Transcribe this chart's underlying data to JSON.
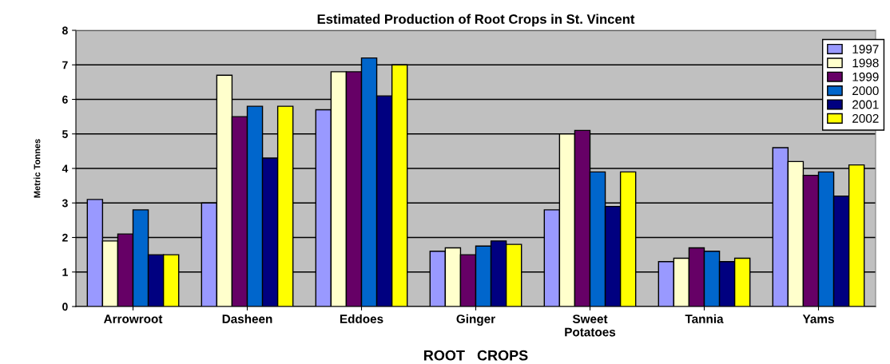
{
  "chart_data": {
    "type": "bar",
    "title": "Estimated Production of Root Crops in St. Vincent",
    "xlabel": "ROOT   CROPS",
    "ylabel": "Metric Tonnes",
    "categories": [
      "Arrowroot",
      "Dasheen",
      "Eddoes",
      "Ginger",
      "Sweet\nPotatoes",
      "Tannia",
      "Yams"
    ],
    "series": [
      {
        "name": "1997",
        "color": "#9999ff",
        "values": [
          3.1,
          3.0,
          5.7,
          1.6,
          2.8,
          1.3,
          4.6
        ]
      },
      {
        "name": "1998",
        "color": "#ffffcc",
        "values": [
          1.9,
          6.7,
          6.8,
          1.7,
          5.0,
          1.4,
          4.2
        ]
      },
      {
        "name": "1999",
        "color": "#660066",
        "values": [
          2.1,
          5.5,
          6.8,
          1.5,
          5.1,
          1.7,
          3.8
        ]
      },
      {
        "name": "2000",
        "color": "#0066cc",
        "values": [
          2.8,
          5.8,
          7.2,
          1.75,
          3.9,
          1.6,
          3.9
        ]
      },
      {
        "name": "2001",
        "color": "#000080",
        "values": [
          1.5,
          4.3,
          6.1,
          1.9,
          2.9,
          1.3,
          3.2
        ]
      },
      {
        "name": "2002",
        "color": "#ffff00",
        "values": [
          1.5,
          5.8,
          7.0,
          1.8,
          3.9,
          1.4,
          4.1
        ]
      }
    ],
    "ylim": [
      0,
      8
    ],
    "yticks": [
      0,
      1,
      2,
      3,
      4,
      5,
      6,
      7,
      8
    ],
    "grid": "y",
    "legend": "top right"
  }
}
